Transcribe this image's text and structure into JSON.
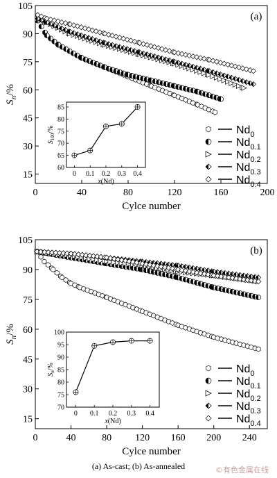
{
  "chart_data": [
    {
      "panel_label": "(a)",
      "type": "scatter",
      "xlabel": "Cylce number",
      "ylabel": "S_n/%",
      "xlim": [
        0,
        200
      ],
      "ylim": [
        10,
        105
      ],
      "xticks": [
        0,
        40,
        80,
        120,
        160,
        200
      ],
      "yticks": [
        15,
        30,
        45,
        60,
        75,
        90,
        105
      ],
      "legend": [
        "Nd0",
        "Nd0.1",
        "Nd0.2",
        "Nd0.3",
        "Nd0.4"
      ],
      "series": [
        {
          "name": "Nd0",
          "marker": "hexagon",
          "x": [
            2,
            10,
            20,
            40,
            60,
            80,
            100,
            120,
            140,
            155
          ],
          "y": [
            97,
            89,
            84,
            77,
            72,
            67,
            62,
            57,
            52,
            48
          ]
        },
        {
          "name": "Nd0.1",
          "marker": "half-circle",
          "x": [
            2,
            10,
            20,
            40,
            60,
            80,
            100,
            120,
            140,
            160
          ],
          "y": [
            97,
            89,
            84,
            77,
            72,
            68,
            65,
            62,
            59,
            55
          ]
        },
        {
          "name": "Nd0.2",
          "marker": "triangle",
          "x": [
            2,
            10,
            30,
            60,
            90,
            120,
            150,
            180
          ],
          "y": [
            98,
            96,
            90,
            84,
            79,
            74,
            68,
            61
          ]
        },
        {
          "name": "Nd0.3",
          "marker": "half-diamond",
          "x": [
            2,
            10,
            30,
            60,
            90,
            120,
            150,
            188
          ],
          "y": [
            98,
            96,
            91,
            85,
            80,
            75,
            70,
            63
          ]
        },
        {
          "name": "Nd0.4",
          "marker": "diamond",
          "x": [
            2,
            10,
            30,
            60,
            90,
            120,
            150,
            188
          ],
          "y": [
            100,
            98,
            95,
            90,
            85,
            80,
            76,
            70
          ]
        }
      ],
      "inset": {
        "xlabel": "x(Nd)",
        "ylabel": "S100/%",
        "xlim": [
          -0.05,
          0.45
        ],
        "ylim": [
          60,
          87
        ],
        "xticks": [
          0,
          0.1,
          0.2,
          0.3,
          0.4
        ],
        "yticks": [
          60,
          65,
          70,
          75,
          80,
          85
        ],
        "x": [
          0,
          0.1,
          0.2,
          0.3,
          0.4
        ],
        "y": [
          65,
          67,
          77,
          78,
          85
        ]
      }
    },
    {
      "panel_label": "(b)",
      "type": "scatter",
      "xlabel": "Cylce number",
      "ylabel": "S_n/%",
      "xlim": [
        0,
        260
      ],
      "ylim": [
        10,
        105
      ],
      "xticks": [
        0,
        40,
        80,
        120,
        160,
        200,
        240
      ],
      "yticks": [
        15,
        30,
        45,
        60,
        75,
        90,
        105
      ],
      "legend": [
        "Nd0",
        "Nd0.1",
        "Nd0.2",
        "Nd0.3",
        "Nd0.4"
      ],
      "series": [
        {
          "name": "Nd0",
          "marker": "hexagon",
          "x": [
            2,
            10,
            20,
            30,
            40,
            50,
            80,
            120,
            160,
            200,
            250
          ],
          "y": [
            99,
            94,
            90,
            86,
            83,
            81,
            76,
            69,
            62,
            56,
            50
          ]
        },
        {
          "name": "Nd0.1",
          "marker": "half-circle",
          "x": [
            2,
            40,
            80,
            120,
            160,
            200,
            250
          ],
          "y": [
            99,
            96,
            93,
            90,
            86,
            81,
            76
          ]
        },
        {
          "name": "Nd0.2",
          "marker": "triangle",
          "x": [
            2,
            40,
            80,
            120,
            160,
            200,
            250
          ],
          "y": [
            99,
            97,
            94,
            92,
            89,
            87,
            84
          ]
        },
        {
          "name": "Nd0.3",
          "marker": "half-diamond",
          "x": [
            2,
            40,
            80,
            120,
            160,
            200,
            250
          ],
          "y": [
            99,
            98,
            96,
            94,
            92,
            89,
            86
          ]
        },
        {
          "name": "Nd0.4",
          "marker": "diamond",
          "x": [
            2,
            40,
            80,
            120,
            160,
            200,
            250
          ],
          "y": [
            99,
            98,
            96,
            93,
            90,
            87,
            84
          ]
        }
      ],
      "inset": {
        "xlabel": "x(Nd)",
        "ylabel": "S_n/%",
        "xlim": [
          -0.05,
          0.45
        ],
        "ylim": [
          70,
          100
        ],
        "xticks": [
          0,
          0.1,
          0.2,
          0.3,
          0.4
        ],
        "yticks": [
          70,
          75,
          80,
          85,
          90,
          95,
          100
        ],
        "x": [
          0,
          0.1,
          0.2,
          0.3,
          0.4
        ],
        "y": [
          76,
          94.5,
          96,
          96.5,
          96.5
        ]
      }
    }
  ],
  "caption": "(a) As-cast; (b) As-annealed",
  "watermark": "©有色金属在线"
}
